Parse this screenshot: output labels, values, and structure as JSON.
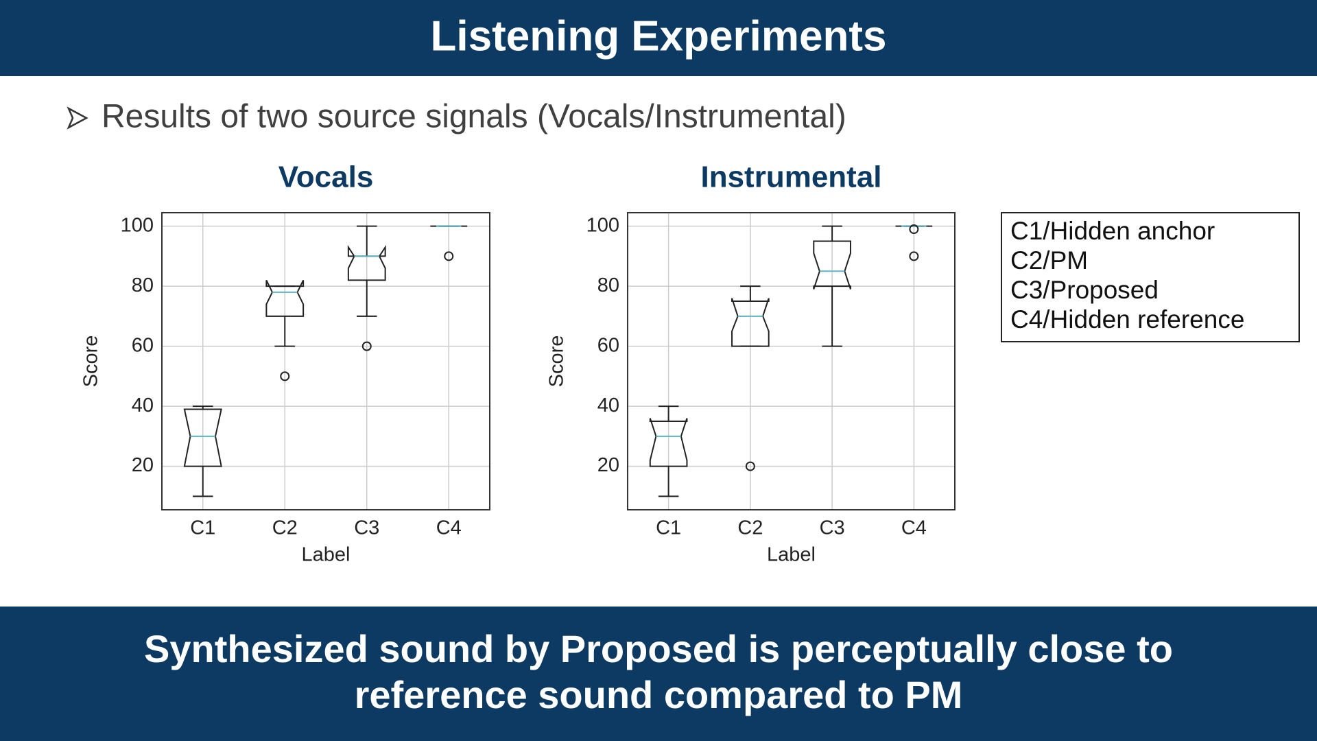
{
  "header": {
    "title": "Listening Experiments"
  },
  "bullet": "Results of two source signals (Vocals/Instrumental)",
  "chart_data": [
    {
      "type": "box",
      "title": "Vocals",
      "xlabel": "Label",
      "ylabel": "Score",
      "categories": [
        "C1",
        "C2",
        "C3",
        "C4"
      ],
      "boxes": [
        {
          "whislo": 10,
          "q1": 20,
          "med": 30,
          "q3": 39,
          "whishi": 40,
          "notch": [
            20,
            39
          ],
          "fliers": []
        },
        {
          "whislo": 60,
          "q1": 70,
          "med": 78,
          "q3": 80,
          "whishi": 80,
          "notch": [
            74,
            82
          ],
          "fliers": [
            50
          ]
        },
        {
          "whislo": 70,
          "q1": 82,
          "med": 90,
          "q3": 90,
          "whishi": 100,
          "notch": [
            86,
            93
          ],
          "fliers": [
            60
          ]
        },
        {
          "whislo": 100,
          "q1": 100,
          "med": 100,
          "q3": 100,
          "whishi": 100,
          "notch": [
            100,
            100
          ],
          "fliers": [
            90
          ]
        }
      ],
      "ylim": [
        5.5,
        104.5
      ],
      "yticks": [
        20,
        40,
        60,
        80,
        100
      ],
      "grid": true,
      "box_color": "#222222",
      "median_color": "#5fb3c3"
    },
    {
      "type": "box",
      "title": "Instrumental",
      "xlabel": "Label",
      "ylabel": "Score",
      "categories": [
        "C1",
        "C2",
        "C3",
        "C4"
      ],
      "boxes": [
        {
          "whislo": 10,
          "q1": 20,
          "med": 30,
          "q3": 35,
          "whishi": 40,
          "notch": [
            22,
            36
          ],
          "fliers": []
        },
        {
          "whislo": 60,
          "q1": 60,
          "med": 70,
          "q3": 75,
          "whishi": 80,
          "notch": [
            65,
            76
          ],
          "fliers": [
            20
          ]
        },
        {
          "whislo": 60,
          "q1": 80,
          "med": 85,
          "q3": 95,
          "whishi": 100,
          "notch": [
            79,
            91
          ],
          "fliers": []
        },
        {
          "whislo": 100,
          "q1": 100,
          "med": 100,
          "q3": 100,
          "whishi": 100,
          "notch": [
            100,
            100
          ],
          "fliers": [
            99,
            90
          ]
        }
      ],
      "ylim": [
        5.5,
        104.5
      ],
      "yticks": [
        20,
        40,
        60,
        80,
        100
      ],
      "grid": true,
      "box_color": "#222222",
      "median_color": "#5fb3c3"
    }
  ],
  "legend_box": {
    "items": [
      "C1/Hidden anchor",
      "C2/PM",
      "C3/Proposed",
      "C4/Hidden reference"
    ]
  },
  "footer": {
    "lines": [
      "Synthesized sound by Proposed is perceptually close to",
      "reference sound compared to PM"
    ]
  }
}
